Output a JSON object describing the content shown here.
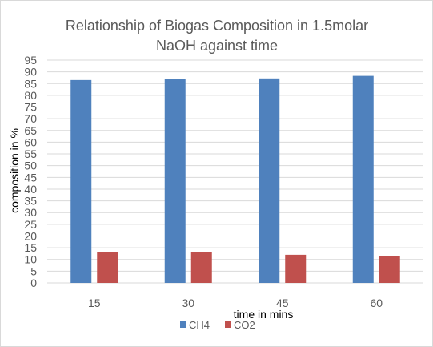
{
  "chart_data": {
    "type": "bar",
    "title": "Relationship of Biogas Composition in 1.5molar NaOH against time",
    "title_lines": [
      "Relationship of Biogas Composition in 1.5molar",
      "NaOH against time"
    ],
    "xlabel": "time in mins",
    "ylabel": "composition in %",
    "categories": [
      "15",
      "30",
      "45",
      "60"
    ],
    "series": [
      {
        "name": "CH4",
        "color": "#4f81bd",
        "values": [
          86.5,
          87,
          87.2,
          88.3
        ]
      },
      {
        "name": "CO2",
        "color": "#c0504d",
        "values": [
          13,
          13,
          12,
          11.3
        ]
      }
    ],
    "ylim": [
      0,
      95
    ],
    "yticks": [
      "0",
      "5",
      "10",
      "15",
      "20",
      "25",
      "30",
      "35",
      "40",
      "45",
      "50",
      "55",
      "60",
      "65",
      "70",
      "75",
      "80",
      "85",
      "90",
      "95"
    ],
    "grid": true,
    "legend": "bottom"
  }
}
